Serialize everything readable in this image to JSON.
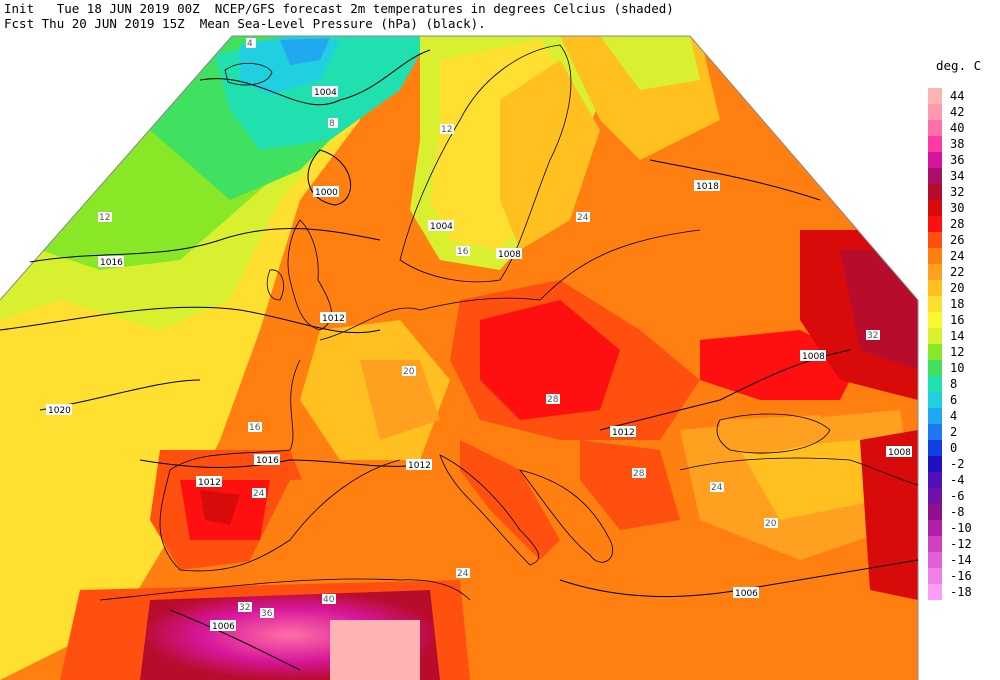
{
  "header": {
    "init_label": "Init",
    "init_time": "Tue 18 JUN 2019 00Z",
    "fcst_label": "Fcst",
    "fcst_time": "Thu 20 JUN 2019 15Z",
    "line1_title": "NCEP/GFS forecast 2m temperatures in degrees Celcius (shaded)",
    "line2_title": "Mean Sea-Level Pressure (hPa) (black)."
  },
  "legend": {
    "unit": "deg. C",
    "levels": [
      {
        "label": "44",
        "color": "#ffb3b3"
      },
      {
        "label": "42",
        "color": "#ff99b0"
      },
      {
        "label": "40",
        "color": "#ff70a6"
      },
      {
        "label": "38",
        "color": "#ff3aa0"
      },
      {
        "label": "36",
        "color": "#d6169a"
      },
      {
        "label": "34",
        "color": "#a8106a"
      },
      {
        "label": "32",
        "color": "#b80c2c"
      },
      {
        "label": "30",
        "color": "#d80a0a"
      },
      {
        "label": "28",
        "color": "#ff1010"
      },
      {
        "label": "26",
        "color": "#ff5010"
      },
      {
        "label": "24",
        "color": "#ff8010"
      },
      {
        "label": "22",
        "color": "#ffa020"
      },
      {
        "label": "20",
        "color": "#ffc020"
      },
      {
        "label": "18",
        "color": "#ffe030"
      },
      {
        "label": "16",
        "color": "#f8f830"
      },
      {
        "label": "14",
        "color": "#d8f030"
      },
      {
        "label": "12",
        "color": "#88e828"
      },
      {
        "label": "10",
        "color": "#40e060"
      },
      {
        "label": "8",
        "color": "#20e0b0"
      },
      {
        "label": "6",
        "color": "#20d0e0"
      },
      {
        "label": "4",
        "color": "#20a8f0"
      },
      {
        "label": "2",
        "color": "#2078f0"
      },
      {
        "label": "0",
        "color": "#1040e0"
      },
      {
        "label": "-2",
        "color": "#2010c0"
      },
      {
        "label": "-4",
        "color": "#5010b8"
      },
      {
        "label": "-6",
        "color": "#7010a8"
      },
      {
        "label": "-8",
        "color": "#901090"
      },
      {
        "label": "-10",
        "color": "#b020a8"
      },
      {
        "label": "-12",
        "color": "#d040c0"
      },
      {
        "label": "-14",
        "color": "#e060d8"
      },
      {
        "label": "-16",
        "color": "#f080e8"
      },
      {
        "label": "-18",
        "color": "#ff9cf8"
      }
    ]
  },
  "map": {
    "isobar_labels": [
      "1004",
      "1000",
      "1004",
      "1016",
      "1012",
      "1020",
      "1016",
      "1012",
      "1012",
      "1018",
      "1008",
      "1012",
      "1006",
      "1006",
      "1008",
      "1008"
    ],
    "temp_labels": [
      "4",
      "8",
      "12",
      "12",
      "16",
      "24",
      "20",
      "24",
      "28",
      "32",
      "36",
      "40",
      "20",
      "24",
      "28",
      "32",
      "16",
      "24"
    ]
  }
}
